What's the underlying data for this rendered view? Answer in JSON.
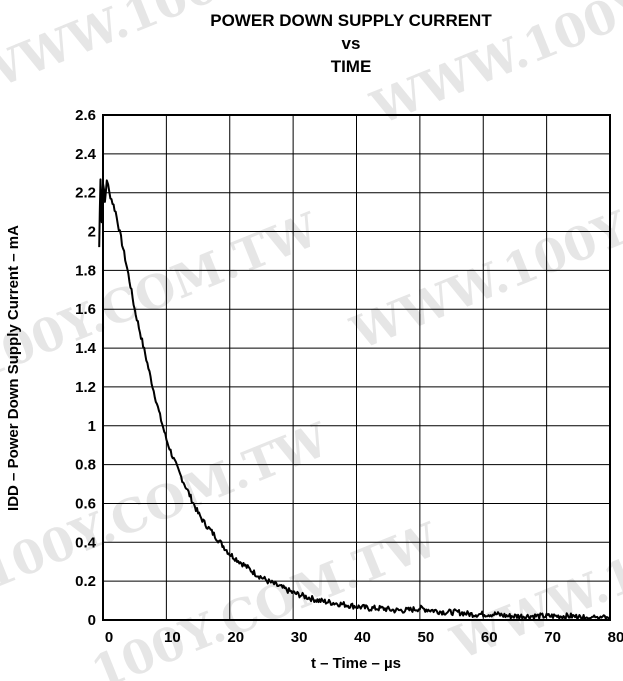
{
  "watermark": [
    "WWW.100Y.COM.TW",
    "WWW.100Y.COM.TW",
    "WWW.100Y.COM.TW",
    "100Y.COM.TW",
    "100Y.COM.TW",
    "100Y.COM.TW",
    "WWW.100Y"
  ],
  "chart_data": {
    "type": "line",
    "title": [
      "POWER DOWN SUPPLY CURRENT",
      "vs",
      "TIME"
    ],
    "xlabel": "t – Time – µs",
    "ylabel": "IDD – Power Down Supply Current – mA",
    "xlim": [
      0,
      80
    ],
    "ylim": [
      0,
      2.6
    ],
    "xticks": [
      "0",
      "10",
      "20",
      "30",
      "40",
      "50",
      "60",
      "70",
      "80"
    ],
    "yticks": [
      "0",
      "0.2",
      "0.4",
      "0.6",
      "0.8",
      "1",
      "1.2",
      "1.4",
      "1.6",
      "1.8",
      "2",
      "2.2",
      "2.4",
      "2.6"
    ],
    "xtick_values": [
      0,
      10,
      20,
      30,
      40,
      50,
      60,
      70,
      80
    ],
    "ytick_values": [
      0,
      0.2,
      0.4,
      0.6,
      0.8,
      1,
      1.2,
      1.4,
      1.6,
      1.8,
      2,
      2.2,
      2.4,
      2.6
    ],
    "grid": true,
    "series": [
      {
        "color": "#000000",
        "x": [
          -0.6,
          -0.4,
          -0.2,
          0,
          0.3,
          0.6,
          1,
          2,
          3,
          4,
          5,
          6,
          7,
          8,
          9,
          10,
          11,
          12,
          13,
          14,
          15,
          16,
          17,
          18,
          19,
          20,
          22,
          24,
          26,
          28,
          30,
          32,
          34,
          36,
          38,
          40,
          42,
          44,
          46,
          48,
          50,
          52,
          54,
          56,
          58,
          60,
          62,
          64,
          66,
          68,
          70,
          72,
          74,
          76,
          78,
          80
        ],
        "y": [
          1.92,
          2.28,
          2.05,
          2.26,
          2.15,
          2.27,
          2.2,
          2.1,
          1.94,
          1.78,
          1.6,
          1.46,
          1.32,
          1.18,
          1.05,
          0.93,
          0.84,
          0.76,
          0.69,
          0.62,
          0.55,
          0.5,
          0.46,
          0.42,
          0.38,
          0.34,
          0.29,
          0.24,
          0.2,
          0.17,
          0.14,
          0.12,
          0.1,
          0.09,
          0.08,
          0.07,
          0.06,
          0.06,
          0.05,
          0.05,
          0.06,
          0.05,
          0.04,
          0.04,
          0.03,
          0.03,
          0.03,
          0.02,
          0.02,
          0.02,
          0.02,
          0.02,
          0.02,
          0.01,
          0.01,
          0.01
        ]
      }
    ]
  }
}
